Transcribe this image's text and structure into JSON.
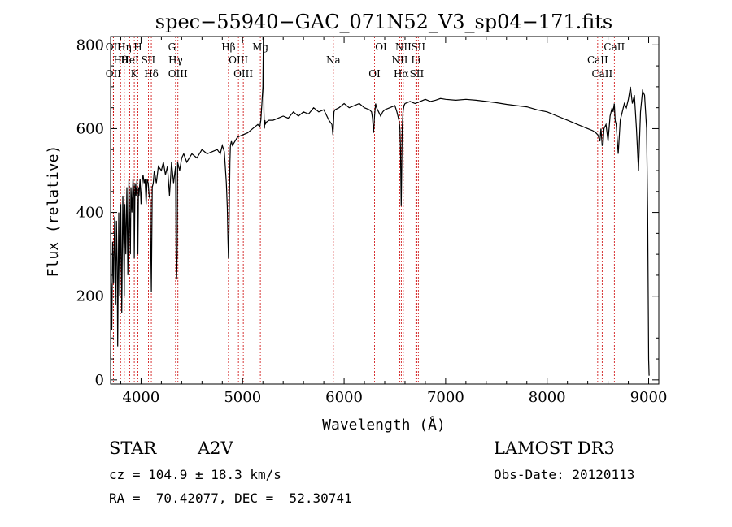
{
  "chart_data": {
    "type": "line",
    "title": "spec−55940−GAC_071N52_V3_sp04−171.fits",
    "xlabel": "Wavelength (Å)",
    "ylabel": "Flux (relative)",
    "xlim": [
      3700,
      9100
    ],
    "ylim": [
      -10,
      820
    ],
    "x_ticks": [
      4000,
      5000,
      6000,
      7000,
      8000,
      9000
    ],
    "y_ticks": [
      0,
      200,
      400,
      600,
      800
    ],
    "line_color": "#000000",
    "marker_color": "#cc0000",
    "series": [
      {
        "x": [
          3700,
          3705,
          3712,
          3720,
          3730,
          3740,
          3750,
          3758,
          3765,
          3770,
          3780,
          3790,
          3800,
          3810,
          3820,
          3830,
          3835,
          3840,
          3850,
          3860,
          3870,
          3880,
          3889,
          3895,
          3900,
          3910,
          3920,
          3930,
          3933,
          3940,
          3950,
          3960,
          3968,
          3975,
          3980,
          3990,
          4000,
          4010,
          4020,
          4030,
          4040,
          4050,
          4060,
          4070,
          4080,
          4090,
          4101,
          4110,
          4120,
          4130,
          4150,
          4170,
          4200,
          4220,
          4240,
          4260,
          4280,
          4300,
          4320,
          4340,
          4345,
          4350,
          4355,
          4360,
          4370,
          4380,
          4400,
          4420,
          4450,
          4500,
          4550,
          4600,
          4650,
          4700,
          4750,
          4780,
          4800,
          4820,
          4840,
          4850,
          4855,
          4861,
          4866,
          4870,
          4875,
          4880,
          4890,
          4900,
          4950,
          5000,
          5050,
          5100,
          5150,
          5170,
          5180,
          5190,
          5200,
          5205,
          5210,
          5215,
          5220,
          5225,
          5230,
          5260,
          5300,
          5350,
          5400,
          5450,
          5500,
          5550,
          5600,
          5650,
          5700,
          5750,
          5800,
          5850,
          5880,
          5890,
          5895,
          5900,
          5910,
          5950,
          6000,
          6050,
          6100,
          6150,
          6200,
          6250,
          6270,
          6280,
          6290,
          6300,
          6310,
          6320,
          6340,
          6360,
          6380,
          6400,
          6450,
          6500,
          6520,
          6540,
          6550,
          6555,
          6563,
          6568,
          6572,
          6580,
          6590,
          6600,
          6650,
          6700,
          6750,
          6800,
          6850,
          6900,
          6950,
          7000,
          7100,
          7200,
          7300,
          7400,
          7500,
          7600,
          7700,
          7800,
          7900,
          8000,
          8100,
          8200,
          8300,
          8400,
          8450,
          8480,
          8500,
          8520,
          8530,
          8542,
          8550,
          8560,
          8580,
          8600,
          8620,
          8640,
          8650,
          8662,
          8670,
          8680,
          8700,
          8720,
          8740,
          8760,
          8780,
          8800,
          8820,
          8840,
          8860,
          8880,
          8900,
          8920,
          8940,
          8960,
          8980,
          8990,
          9000,
          9005
        ],
        "y": [
          50,
          230,
          120,
          330,
          230,
          390,
          180,
          380,
          270,
          80,
          400,
          200,
          420,
          160,
          440,
          300,
          200,
          420,
          300,
          460,
          250,
          480,
          370,
          300,
          460,
          400,
          480,
          440,
          290,
          470,
          440,
          480,
          300,
          460,
          440,
          480,
          420,
          470,
          490,
          470,
          480,
          420,
          480,
          470,
          440,
          430,
          210,
          460,
          470,
          500,
          470,
          510,
          500,
          520,
          490,
          510,
          440,
          520,
          470,
          510,
          300,
          240,
          300,
          520,
          510,
          500,
          530,
          540,
          520,
          540,
          530,
          550,
          540,
          545,
          550,
          540,
          560,
          545,
          470,
          410,
          340,
          290,
          350,
          420,
          520,
          560,
          570,
          560,
          580,
          585,
          590,
          600,
          610,
          605,
          620,
          660,
          700,
          820,
          640,
          600,
          620,
          610,
          615,
          620,
          620,
          625,
          630,
          625,
          640,
          630,
          640,
          635,
          650,
          640,
          645,
          620,
          610,
          585,
          610,
          640,
          645,
          650,
          660,
          650,
          655,
          660,
          650,
          645,
          640,
          625,
          590,
          630,
          660,
          650,
          640,
          630,
          640,
          645,
          650,
          655,
          640,
          620,
          600,
          560,
          415,
          520,
          600,
          640,
          655,
          660,
          665,
          660,
          665,
          670,
          665,
          668,
          672,
          670,
          668,
          670,
          668,
          665,
          662,
          658,
          655,
          652,
          645,
          640,
          630,
          620,
          610,
          600,
          595,
          590,
          585,
          570,
          600,
          560,
          560,
          600,
          610,
          570,
          630,
          650,
          640,
          660,
          620,
          610,
          540,
          620,
          640,
          660,
          650,
          670,
          700,
          660,
          680,
          600,
          500,
          640,
          690,
          680,
          600,
          400,
          50,
          10
        ]
      }
    ],
    "spectral_lines": [
      {
        "label": "OII",
        "x": 3727
      },
      {
        "label": "Hθ",
        "x": 3798
      },
      {
        "label": "OII",
        "x": 3727
      },
      {
        "label": "Hη",
        "x": 3835
      },
      {
        "label": "HeI",
        "x": 3889
      },
      {
        "label": "K",
        "x": 3933
      },
      {
        "label": "H",
        "x": 3968
      },
      {
        "label": "SII",
        "x": 4072
      },
      {
        "label": "Hδ",
        "x": 4101
      },
      {
        "label": "G",
        "x": 4304
      },
      {
        "label": "Hγ",
        "x": 4340
      },
      {
        "label": "OIII",
        "x": 4363
      },
      {
        "label": "Hβ",
        "x": 4861
      },
      {
        "label": "OIII",
        "x": 4959
      },
      {
        "label": "OIII",
        "x": 5007
      },
      {
        "label": "Mg",
        "x": 5175
      },
      {
        "label": "Na",
        "x": 5894
      },
      {
        "label": "OI",
        "x": 6300
      },
      {
        "label": "OI",
        "x": 6364
      },
      {
        "label": "NII",
        "x": 6548
      },
      {
        "label": "Hα",
        "x": 6563
      },
      {
        "label": "NII",
        "x": 6583
      },
      {
        "label": "Li",
        "x": 6707
      },
      {
        "label": "SII",
        "x": 6716
      },
      {
        "label": "SII",
        "x": 6731
      },
      {
        "label": "CaII",
        "x": 8498
      },
      {
        "label": "CaII",
        "x": 8542
      },
      {
        "label": "CaII",
        "x": 8662
      }
    ]
  },
  "info": {
    "type": "STAR",
    "subclass": "A2V",
    "cz": "cz = 104.9 ± 18.3 km/s",
    "radec": "RA =  70.42077, DEC =  52.30741",
    "survey": "LAMOST DR3",
    "obsdate": "Obs-Date: 20120113"
  }
}
